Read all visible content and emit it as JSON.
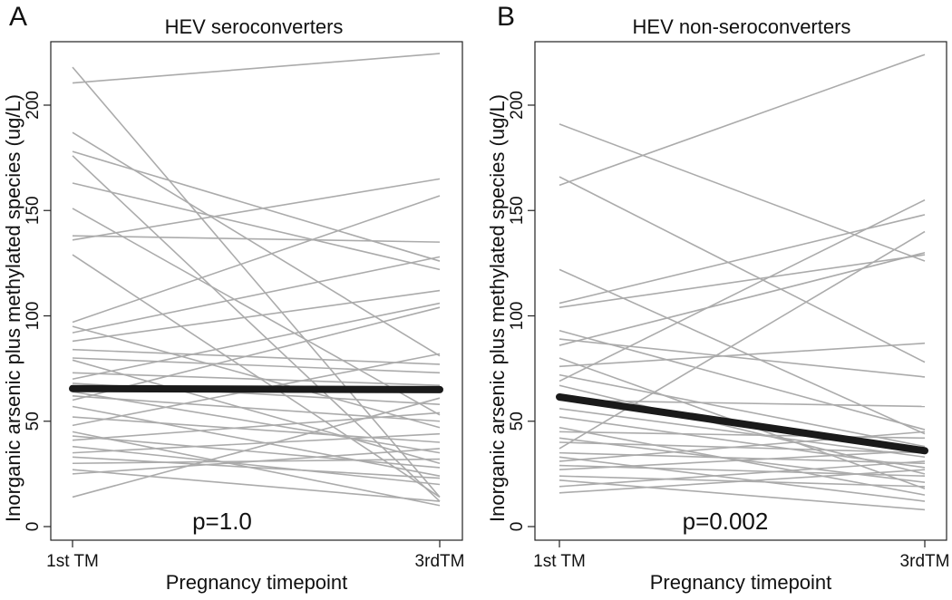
{
  "chart_data": [
    {
      "type": "line",
      "panel_label": "A",
      "title": "HEV seroconverters",
      "xlabel": "Pregnancy timepoint",
      "ylabel": "Inorganic arsenic plus methylated species (ug/L)",
      "categories": [
        "1st TM",
        "3rdTM"
      ],
      "ylim": [
        0,
        225
      ],
      "yticks": [
        "0",
        "50",
        "100",
        "150",
        "200"
      ],
      "annotation": "p=1.0",
      "colors": {
        "individual": "#ababab",
        "mean": "#1a1a1a"
      },
      "mean_series": {
        "name": "mean",
        "values": [
          65.5,
          65
        ]
      },
      "series": [
        {
          "name": "s1",
          "values": [
            210.5,
            224.5
          ]
        },
        {
          "name": "s2",
          "values": [
            218,
            14
          ]
        },
        {
          "name": "s3",
          "values": [
            187,
            81
          ]
        },
        {
          "name": "s4",
          "values": [
            178,
            126
          ]
        },
        {
          "name": "s5",
          "values": [
            176,
            12
          ]
        },
        {
          "name": "s6",
          "values": [
            163,
            122
          ]
        },
        {
          "name": "s7",
          "values": [
            151,
            53
          ]
        },
        {
          "name": "s8",
          "values": [
            138,
            135
          ]
        },
        {
          "name": "s9",
          "values": [
            136,
            165
          ]
        },
        {
          "name": "s10",
          "values": [
            129,
            14
          ]
        },
        {
          "name": "s11",
          "values": [
            97,
            157
          ]
        },
        {
          "name": "s12",
          "values": [
            95,
            47
          ]
        },
        {
          "name": "s13",
          "values": [
            92,
            128
          ]
        },
        {
          "name": "s14",
          "values": [
            88,
            112
          ]
        },
        {
          "name": "s15",
          "values": [
            84,
            77
          ]
        },
        {
          "name": "s16",
          "values": [
            80,
            73
          ]
        },
        {
          "name": "s17",
          "values": [
            79,
            30
          ]
        },
        {
          "name": "s18",
          "values": [
            73,
            67
          ]
        },
        {
          "name": "s19",
          "values": [
            70,
            106
          ]
        },
        {
          "name": "s20",
          "values": [
            68,
            58
          ]
        },
        {
          "name": "s21",
          "values": [
            64,
            35
          ]
        },
        {
          "name": "s22",
          "values": [
            62,
            50
          ]
        },
        {
          "name": "s23",
          "values": [
            60,
            104
          ]
        },
        {
          "name": "s24",
          "values": [
            57,
            24
          ]
        },
        {
          "name": "s25",
          "values": [
            52,
            40
          ]
        },
        {
          "name": "s26",
          "values": [
            48,
            82
          ]
        },
        {
          "name": "s27",
          "values": [
            45,
            10
          ]
        },
        {
          "name": "s28",
          "values": [
            43,
            28
          ]
        },
        {
          "name": "s29",
          "values": [
            41,
            54
          ]
        },
        {
          "name": "s30",
          "values": [
            38,
            20
          ]
        },
        {
          "name": "s31",
          "values": [
            35,
            44
          ]
        },
        {
          "name": "s32",
          "values": [
            33,
            23
          ]
        },
        {
          "name": "s33",
          "values": [
            30,
            32
          ]
        },
        {
          "name": "s34",
          "values": [
            27,
            12
          ]
        },
        {
          "name": "s35",
          "values": [
            25,
            37
          ]
        },
        {
          "name": "s36",
          "values": [
            14,
            61
          ]
        }
      ]
    },
    {
      "type": "line",
      "panel_label": "B",
      "title": "HEV non-seroconverters",
      "xlabel": "Pregnancy timepoint",
      "ylabel": "Inorganic arsenic plus methylated species (ug/L)",
      "categories": [
        "1st TM",
        "3rdTM"
      ],
      "ylim": [
        0,
        225
      ],
      "yticks": [
        "0",
        "50",
        "100",
        "150",
        "200"
      ],
      "annotation": "p=0.002",
      "colors": {
        "individual": "#ababab",
        "mean": "#1a1a1a"
      },
      "mean_series": {
        "name": "mean",
        "values": [
          61.5,
          36
        ]
      },
      "series": [
        {
          "name": "s1",
          "values": [
            162,
            224
          ]
        },
        {
          "name": "s2",
          "values": [
            191,
            126
          ]
        },
        {
          "name": "s3",
          "values": [
            166,
            78
          ]
        },
        {
          "name": "s4",
          "values": [
            122,
            44
          ]
        },
        {
          "name": "s5",
          "values": [
            106,
            148
          ]
        },
        {
          "name": "s6",
          "values": [
            104,
            129
          ]
        },
        {
          "name": "s7",
          "values": [
            93,
            46
          ]
        },
        {
          "name": "s8",
          "values": [
            89,
            71
          ]
        },
        {
          "name": "s9",
          "values": [
            86,
            130
          ]
        },
        {
          "name": "s10",
          "values": [
            80,
            18
          ]
        },
        {
          "name": "s11",
          "values": [
            76,
            87
          ]
        },
        {
          "name": "s12",
          "values": [
            72,
            38
          ]
        },
        {
          "name": "s13",
          "values": [
            69,
            155
          ]
        },
        {
          "name": "s14",
          "values": [
            67,
            25
          ]
        },
        {
          "name": "s15",
          "values": [
            60,
            57
          ]
        },
        {
          "name": "s16",
          "values": [
            56,
            33
          ]
        },
        {
          "name": "s17",
          "values": [
            52,
            28
          ]
        },
        {
          "name": "s18",
          "values": [
            47,
            15
          ]
        },
        {
          "name": "s19",
          "values": [
            45,
            42
          ]
        },
        {
          "name": "s20",
          "values": [
            42,
            21
          ]
        },
        {
          "name": "s21",
          "values": [
            40,
            35
          ]
        },
        {
          "name": "s22",
          "values": [
            37,
            140
          ]
        },
        {
          "name": "s23",
          "values": [
            35,
            30
          ]
        },
        {
          "name": "s24",
          "values": [
            33,
            12
          ]
        },
        {
          "name": "s25",
          "values": [
            31,
            45
          ]
        },
        {
          "name": "s26",
          "values": [
            29,
            24
          ]
        },
        {
          "name": "s27",
          "values": [
            27,
            36
          ]
        },
        {
          "name": "s28",
          "values": [
            24,
            19
          ]
        },
        {
          "name": "s29",
          "values": [
            22,
            8
          ]
        },
        {
          "name": "s30",
          "values": [
            19,
            31
          ]
        },
        {
          "name": "s31",
          "values": [
            16,
            27
          ]
        }
      ]
    }
  ]
}
